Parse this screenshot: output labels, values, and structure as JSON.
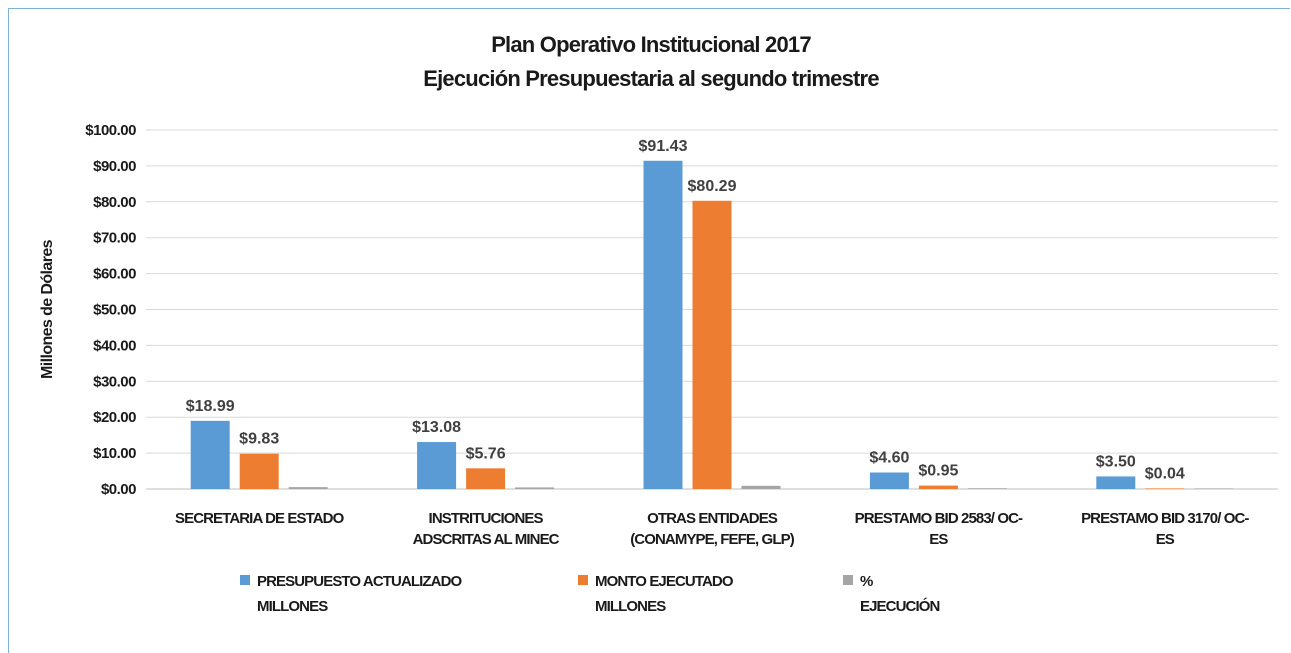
{
  "chart_data": {
    "type": "bar",
    "title": [
      "Plan Operativo Institucional 2017",
      "Ejecución Presupuestaria al segundo trimestre"
    ],
    "ylabel": "Millones de Dólares",
    "xlabel": "",
    "ylim": [
      0,
      100
    ],
    "yticks": [
      0,
      10,
      20,
      30,
      40,
      50,
      60,
      70,
      80,
      90,
      100
    ],
    "ytick_labels": [
      "$0.00",
      "$10.00",
      "$20.00",
      "$30.00",
      "$40.00",
      "$50.00",
      "$60.00",
      "$70.00",
      "$80.00",
      "$90.00",
      "$100.00"
    ],
    "grid": true,
    "legend_position": "bottom",
    "categories": [
      [
        "SECRETARIA DE ESTADO"
      ],
      [
        "INSTRITUCIONES",
        "ADSCRITAS AL MINEC"
      ],
      [
        "OTRAS ENTIDADES",
        "(CONAMYPE, FEFE, GLP)"
      ],
      [
        "PRESTAMO BID 2583/ OC-",
        "ES"
      ],
      [
        "PRESTAMO BID 3170/ OC-",
        "ES"
      ]
    ],
    "series": [
      {
        "name": [
          "PRESUPUESTO ACTUALIZADO",
          "MILLONES"
        ],
        "color": "#5b9bd5",
        "values": [
          18.99,
          13.08,
          91.43,
          4.6,
          3.5
        ],
        "data_labels": [
          "$18.99",
          "$13.08",
          "$91.43",
          "$4.60",
          "$3.50"
        ]
      },
      {
        "name": [
          "MONTO EJECUTADO",
          "MILLONES"
        ],
        "color": "#ed7d31",
        "values": [
          9.83,
          5.76,
          80.29,
          0.95,
          0.04
        ],
        "data_labels": [
          "$9.83",
          "$5.76",
          "$80.29",
          "$0.95",
          "$0.04"
        ]
      },
      {
        "name": [
          "%",
          "EJECUCIÓN"
        ],
        "color": "#a5a5a5",
        "values": [
          0.52,
          0.44,
          0.88,
          0.21,
          0.01
        ],
        "data_labels": [
          "",
          "",
          "",
          "",
          ""
        ]
      }
    ]
  }
}
